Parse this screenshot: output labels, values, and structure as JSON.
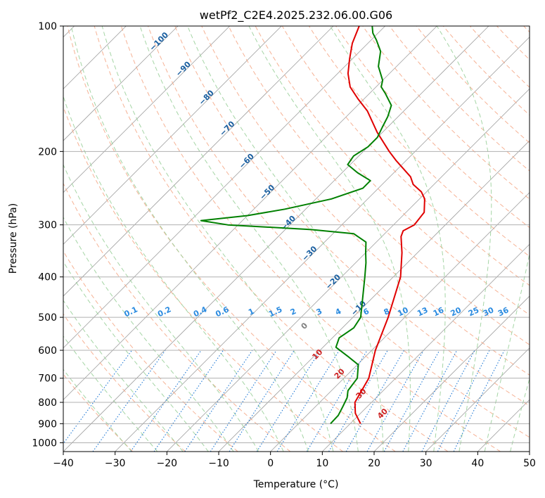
{
  "chart_data": {
    "type": "line",
    "title": "wetPf2_C2E4.2025.232.06.00.G06",
    "xlabel": "Temperature (°C)",
    "ylabel": "Pressure (hPa)",
    "xlim": [
      -40,
      50
    ],
    "ylim": [
      1050,
      100
    ],
    "y_scale": "log",
    "skew_factor": 35,
    "grid": true,
    "x_ticks": [
      -40,
      -30,
      -20,
      -10,
      0,
      10,
      20,
      30,
      40,
      50
    ],
    "x_tick_labels": [
      "−40",
      "−30",
      "−20",
      "−10",
      "0",
      "10",
      "20",
      "30",
      "40",
      "50"
    ],
    "y_ticks": [
      100,
      200,
      300,
      400,
      500,
      600,
      700,
      800,
      900,
      1000
    ],
    "y_tick_labels": [
      "100",
      "200",
      "300",
      "400",
      "500",
      "600",
      "700",
      "800",
      "900",
      "1000"
    ],
    "colors": {
      "temperature": "#e00000",
      "dewpoint": "#008000",
      "isotherm": "#a0a0a0",
      "dry_adiabat": "#f4a582",
      "moist_adiabat": "#9bd09b",
      "mixing_ratio": "#1f78d4",
      "grid": "#b0b0b0"
    },
    "series": [
      {
        "key": "temperature",
        "points": [
          [
            900,
            12
          ],
          [
            850,
            9
          ],
          [
            800,
            6.8
          ],
          [
            700,
            4.8
          ],
          [
            600,
            0.7
          ],
          [
            500,
            -3.2
          ],
          [
            400,
            -8.6
          ],
          [
            350,
            -13
          ],
          [
            320,
            -16.3
          ],
          [
            310,
            -17
          ],
          [
            300,
            -16
          ],
          [
            280,
            -16.5
          ],
          [
            260,
            -19
          ],
          [
            250,
            -21
          ],
          [
            240,
            -24
          ],
          [
            230,
            -26
          ],
          [
            210,
            -32
          ],
          [
            200,
            -35
          ],
          [
            180,
            -41
          ],
          [
            160,
            -47
          ],
          [
            150,
            -51
          ],
          [
            140,
            -55
          ],
          [
            130,
            -58
          ],
          [
            120,
            -60.5
          ],
          [
            110,
            -63
          ],
          [
            100,
            -65
          ]
        ]
      },
      {
        "key": "dewpoint",
        "points": [
          [
            900,
            6.2
          ],
          [
            860,
            6.1
          ],
          [
            820,
            5.3
          ],
          [
            780,
            4.4
          ],
          [
            750,
            3.2
          ],
          [
            700,
            2.6
          ],
          [
            650,
            0.2
          ],
          [
            620,
            -3.5
          ],
          [
            590,
            -7.5
          ],
          [
            560,
            -8.7
          ],
          [
            530,
            -7.8
          ],
          [
            500,
            -8.5
          ],
          [
            450,
            -11.8
          ],
          [
            400,
            -15.5
          ],
          [
            370,
            -18
          ],
          [
            350,
            -20
          ],
          [
            330,
            -22
          ],
          [
            315,
            -26
          ],
          [
            308,
            -35
          ],
          [
            300,
            -52
          ],
          [
            293,
            -58
          ],
          [
            285,
            -50
          ],
          [
            275,
            -44
          ],
          [
            260,
            -37
          ],
          [
            245,
            -33
          ],
          [
            235,
            -33
          ],
          [
            225,
            -37
          ],
          [
            215,
            -40.5
          ],
          [
            205,
            -41
          ],
          [
            195,
            -40
          ],
          [
            185,
            -40
          ],
          [
            175,
            -41
          ],
          [
            165,
            -42
          ],
          [
            155,
            -43.5
          ],
          [
            145,
            -47
          ],
          [
            140,
            -49
          ],
          [
            135,
            -50
          ],
          [
            125,
            -53.5
          ],
          [
            115,
            -56
          ],
          [
            108,
            -59
          ],
          [
            104,
            -61
          ],
          [
            100,
            -62.5
          ]
        ]
      }
    ],
    "dry_adiabat_labels": [
      "−100",
      "−90",
      "−80",
      "−70",
      "−60",
      "−50",
      "−40",
      "−30",
      "−20",
      "−10"
    ],
    "moist_adiabat_labels": [
      "0",
      "10",
      "20",
      "30",
      "40"
    ],
    "mixing_ratio_labels": [
      "0.1",
      "0.2",
      "0.4",
      "0.6",
      "1",
      "1.5",
      "2",
      "3",
      "4",
      "6",
      "8",
      "10",
      "13",
      "16",
      "20",
      "25",
      "30",
      "36"
    ],
    "mixing_ratio_values": [
      0.1,
      0.2,
      0.4,
      0.6,
      1,
      1.5,
      2,
      3,
      4,
      6,
      8,
      10,
      13,
      16,
      20,
      25,
      30,
      36
    ]
  }
}
